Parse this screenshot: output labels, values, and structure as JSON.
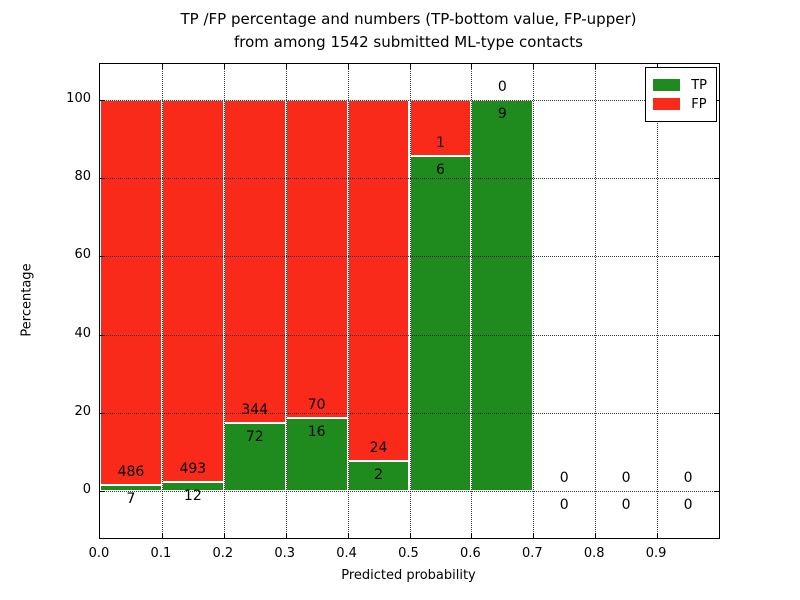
{
  "chart_data": {
    "type": "bar",
    "stacked": true,
    "title_line1": "TP /FP percentage and numbers (TP-bottom value, FP-upper)",
    "title_line2": "from among 1542 submitted ML-type contacts",
    "xlabel": "Predicted probability",
    "ylabel": "Percentage",
    "x_tick_labels": [
      "0.0",
      "0.1",
      "0.2",
      "0.3",
      "0.4",
      "0.5",
      "0.6",
      "0.7",
      "0.8",
      "0.9"
    ],
    "y_tick_values": [
      0,
      20,
      40,
      60,
      80,
      100
    ],
    "xlim": [
      0.0,
      1.0
    ],
    "ylim": [
      -12,
      110
    ],
    "bin_width": 0.1,
    "grid": "dotted",
    "bar_height_note": "bars stacked to 100%; green TP fraction = tp/(tp+fp)",
    "series": [
      {
        "name": "TP",
        "values": [
          7,
          12,
          72,
          16,
          2,
          6,
          9,
          0,
          0,
          0
        ]
      },
      {
        "name": "FP",
        "values": [
          486,
          493,
          344,
          70,
          24,
          1,
          0,
          0,
          0,
          0
        ]
      }
    ],
    "legend": {
      "position": "upper right",
      "entries": [
        {
          "label": "TP",
          "color": "#1f8b1f"
        },
        {
          "label": "FP",
          "color": "#fa2a1a"
        }
      ]
    }
  },
  "colors": {
    "tp": "#1f8b1f",
    "fp": "#fa2a1a",
    "axis": "#000000",
    "grid": "#000000",
    "background": "#ffffff"
  }
}
